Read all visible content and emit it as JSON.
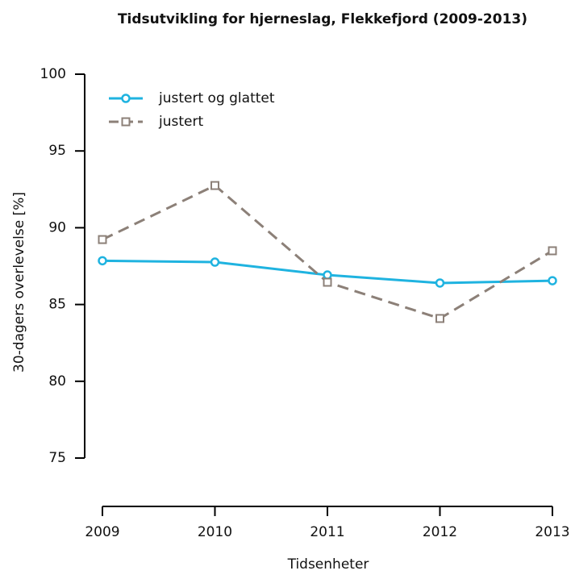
{
  "chart_data": {
    "type": "line",
    "title": "Tidsutvikling for hjerneslag, Flekkefjord (2009-2013)",
    "xlabel": "Tidsenheter",
    "ylabel": "30-dagers overlevelse [%]",
    "x": [
      2009,
      2010,
      2011,
      2012,
      2013
    ],
    "series": [
      {
        "name": "justert og glattet",
        "color": "#1fb3e0",
        "dashed": false,
        "marker": "circle",
        "values": [
          87.85,
          87.76,
          86.92,
          86.4,
          86.55
        ]
      },
      {
        "name": "justert",
        "color": "#8c8078",
        "dashed": true,
        "marker": "square",
        "values": [
          89.23,
          92.75,
          86.45,
          84.09,
          88.5
        ]
      }
    ],
    "xlim": [
      2009,
      2013
    ],
    "xticks": [
      2009,
      2010,
      2011,
      2012,
      2013
    ],
    "ylim": [
      71.85,
      100
    ],
    "yticks": [
      75,
      80,
      85,
      90,
      95,
      100
    ],
    "legend": "top-left",
    "grid": false
  }
}
